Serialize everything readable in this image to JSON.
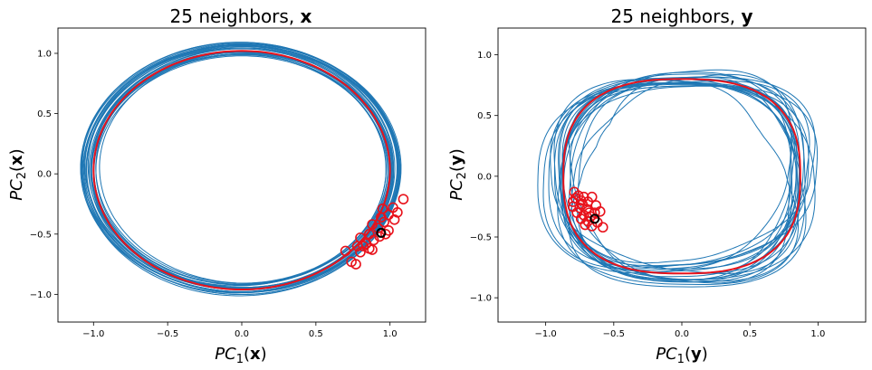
{
  "chart_data": [
    {
      "type": "scatter",
      "title_prefix": "25 neighbors, ",
      "title_var": "x",
      "xlabel_base": "PC",
      "xlabel_sub": "1",
      "xlabel_arg": "x",
      "ylabel_base": "PC",
      "ylabel_sub": "2",
      "ylabel_arg": "x",
      "xlim": [
        -1.24,
        1.24
      ],
      "ylim": [
        -1.23,
        1.21
      ],
      "xticks": [
        -1.0,
        -0.5,
        0.0,
        0.5,
        1.0
      ],
      "xtick_labels": [
        "−1.0",
        "−0.5",
        "0.0",
        "0.5",
        "1.0"
      ],
      "yticks": [
        -1.0,
        -0.5,
        0.0,
        0.5,
        1.0
      ],
      "ytick_labels": [
        "−1.0",
        "−0.5",
        "0.0",
        "0.5",
        "1.0"
      ],
      "trajectory": {
        "shape": "ellipse-bundle",
        "center": [
          0.0,
          0.04
        ],
        "radius_x": 1.03,
        "radius_y": 1.0,
        "spread": 0.08,
        "loops": 26,
        "color": "#1f77b4"
      },
      "fit": {
        "shape": "ellipse",
        "center": [
          0.0,
          0.03
        ],
        "radius_x": 1.0,
        "radius_y": 0.99,
        "color": "#e8121b"
      },
      "neighbors": [
        [
          0.95,
          -0.29
        ],
        [
          1.02,
          -0.28
        ],
        [
          1.09,
          -0.21
        ],
        [
          0.99,
          -0.34
        ],
        [
          1.03,
          -0.38
        ],
        [
          0.96,
          -0.4
        ],
        [
          0.88,
          -0.42
        ],
        [
          0.92,
          -0.45
        ],
        [
          0.99,
          -0.47
        ],
        [
          0.86,
          -0.5
        ],
        [
          0.93,
          -0.52
        ],
        [
          0.8,
          -0.53
        ],
        [
          0.89,
          -0.55
        ],
        [
          0.84,
          -0.58
        ],
        [
          0.78,
          -0.6
        ],
        [
          0.86,
          -0.62
        ],
        [
          0.7,
          -0.64
        ],
        [
          0.8,
          -0.65
        ],
        [
          0.88,
          -0.63
        ],
        [
          0.74,
          -0.73
        ],
        [
          0.77,
          -0.75
        ],
        [
          0.97,
          -0.5
        ],
        [
          0.94,
          -0.36
        ],
        [
          1.05,
          -0.32
        ],
        [
          0.82,
          -0.6
        ]
      ],
      "query_point": [
        0.94,
        -0.49
      ],
      "neighbor_color": "#e8121b",
      "query_color": "#000000"
    },
    {
      "type": "scatter",
      "title_prefix": "25 neighbors, ",
      "title_var": "y",
      "xlabel_base": "PC",
      "xlabel_sub": "1",
      "xlabel_arg": "y",
      "ylabel_base": "PC",
      "ylabel_sub": "2",
      "ylabel_arg": "y",
      "xlim": [
        -1.35,
        1.35
      ],
      "ylim": [
        -1.2,
        1.22
      ],
      "xticks": [
        -1.0,
        -0.5,
        0.0,
        0.5,
        1.0
      ],
      "xtick_labels": [
        "−1.0",
        "−0.5",
        "0.0",
        "0.5",
        "1.0"
      ],
      "yticks": [
        -1.0,
        -0.5,
        0.0,
        0.5,
        1.0
      ],
      "ytick_labels": [
        "−1.0",
        "−0.5",
        "0.0",
        "0.5",
        "1.0"
      ],
      "trajectory": {
        "shape": "irregular-loop-bundle",
        "center": [
          0.0,
          0.0
        ],
        "radius_x": 0.87,
        "radius_y": 0.8,
        "spread": 0.28,
        "loops": 22,
        "color": "#1f77b4"
      },
      "fit": {
        "shape": "rounded-loop",
        "center": [
          0.0,
          0.0
        ],
        "radius_x": 0.87,
        "radius_y": 0.8,
        "color": "#e8121b"
      },
      "neighbors": [
        [
          -0.79,
          -0.13
        ],
        [
          -0.76,
          -0.16
        ],
        [
          -0.72,
          -0.17
        ],
        [
          -0.66,
          -0.17
        ],
        [
          -0.8,
          -0.21
        ],
        [
          -0.74,
          -0.2
        ],
        [
          -0.69,
          -0.21
        ],
        [
          -0.63,
          -0.24
        ],
        [
          -0.8,
          -0.25
        ],
        [
          -0.75,
          -0.26
        ],
        [
          -0.7,
          -0.27
        ],
        [
          -0.6,
          -0.29
        ],
        [
          -0.77,
          -0.3
        ],
        [
          -0.72,
          -0.32
        ],
        [
          -0.67,
          -0.33
        ],
        [
          -0.74,
          -0.35
        ],
        [
          -0.69,
          -0.37
        ],
        [
          -0.62,
          -0.38
        ],
        [
          -0.71,
          -0.4
        ],
        [
          -0.66,
          -0.41
        ],
        [
          -0.58,
          -0.42
        ],
        [
          -0.78,
          -0.18
        ],
        [
          -0.64,
          -0.3
        ],
        [
          -0.73,
          -0.23
        ],
        [
          -0.68,
          -0.3
        ]
      ],
      "query_point": [
        -0.64,
        -0.35
      ],
      "neighbor_color": "#e8121b",
      "query_color": "#000000"
    }
  ]
}
